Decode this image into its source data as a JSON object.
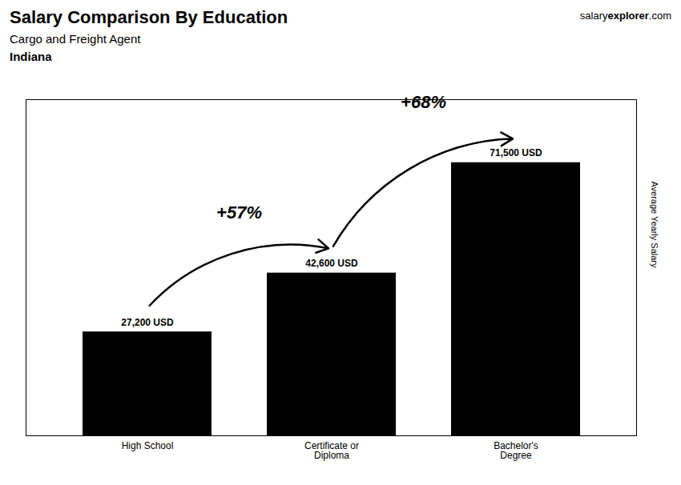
{
  "chart_data": {
    "type": "bar",
    "title": "Salary Comparison By Education",
    "subtitle": "Cargo and Freight Agent",
    "location": "Indiana",
    "brand": [
      "salary",
      "explorer",
      ".com"
    ],
    "ylabel": "Average Yearly Salary",
    "categories": [
      "High School",
      "Certificate or\nDiploma",
      "Bachelor's\nDegree"
    ],
    "values": [
      27200,
      42600,
      71500
    ],
    "value_labels": [
      "27,200 USD",
      "42,600 USD",
      "71,500 USD"
    ],
    "data_labels": true,
    "annotations": [
      {
        "text": "+57%",
        "from": "High School",
        "to": "Certificate or\nDiploma"
      },
      {
        "text": "+68%",
        "from": "Certificate or\nDiploma",
        "to": "Bachelor's\nDegree"
      }
    ],
    "ylim": [
      0,
      88000
    ],
    "yticks": [],
    "tick_labels": "x",
    "grid": false
  }
}
